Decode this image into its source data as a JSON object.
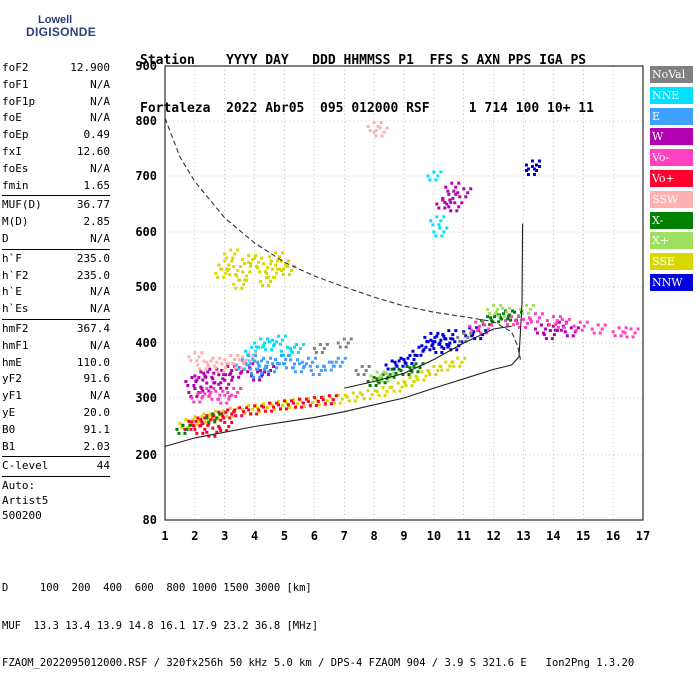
{
  "logo": {
    "line1": "Lowell",
    "line2": "DIGISONDE"
  },
  "header": {
    "row1": "Station    YYYY DAY   DDD HHMMSS P1  FFS S AXN PPS IGA PS",
    "row2": "Fortaleza  2022 Abr05  095 012000 RSF     1 714 100 10+ 11"
  },
  "params": {
    "group1": [
      {
        "k": "foF2",
        "v": "12.900"
      },
      {
        "k": "foF1",
        "v": "N/A"
      },
      {
        "k": "foF1p",
        "v": "N/A"
      },
      {
        "k": "foE",
        "v": "N/A"
      },
      {
        "k": "foEp",
        "v": "0.49"
      },
      {
        "k": "fxI",
        "v": "12.60"
      },
      {
        "k": "foEs",
        "v": "N/A"
      },
      {
        "k": "fmin",
        "v": "1.65"
      }
    ],
    "group2": [
      {
        "k": "MUF(D)",
        "v": "36.77"
      },
      {
        "k": "M(D)",
        "v": "2.85"
      },
      {
        "k": "D",
        "v": "N/A"
      }
    ],
    "group3": [
      {
        "k": "h`F",
        "v": "235.0"
      },
      {
        "k": "h`F2",
        "v": "235.0"
      },
      {
        "k": "h`E",
        "v": "N/A"
      },
      {
        "k": "h`Es",
        "v": "N/A"
      }
    ],
    "group4": [
      {
        "k": "hmF2",
        "v": "367.4"
      },
      {
        "k": "hmF1",
        "v": "N/A"
      },
      {
        "k": "hmE",
        "v": "110.0"
      },
      {
        "k": "yF2",
        "v": "91.6"
      },
      {
        "k": "yF1",
        "v": "N/A"
      },
      {
        "k": "yE",
        "v": "20.0"
      },
      {
        "k": "B0",
        "v": "91.1"
      },
      {
        "k": "B1",
        "v": "2.03"
      }
    ],
    "group5": [
      {
        "k": "C-level",
        "v": "44"
      }
    ],
    "auto": [
      "Auto:",
      "Artist5",
      "500200"
    ]
  },
  "legend": [
    {
      "label": "NoVal",
      "color": "#808080",
      "text": "#ffffff"
    },
    {
      "label": "NNE",
      "color": "#00e0ff",
      "text": "#ffffff"
    },
    {
      "label": "E",
      "color": "#40a0ff",
      "text": "#ffffff"
    },
    {
      "label": "W",
      "color": "#b000b0",
      "text": "#ffffff"
    },
    {
      "label": "Vo-",
      "color": "#ff40c0",
      "text": "#ffffff"
    },
    {
      "label": "Vo+",
      "color": "#ff0030",
      "text": "#ffffff"
    },
    {
      "label": "SSW",
      "color": "#ffb0b0",
      "text": "#ffffff"
    },
    {
      "label": "X-",
      "color": "#008000",
      "text": "#ffffff"
    },
    {
      "label": "X+",
      "color": "#a0e060",
      "text": "#ffffff"
    },
    {
      "label": "SSE",
      "color": "#d8d800",
      "text": "#ffffff"
    },
    {
      "label": "NNW",
      "color": "#0000e0",
      "text": "#ffffff"
    }
  ],
  "chart_data": {
    "type": "scatter",
    "xlim": [
      1,
      17
    ],
    "ylim": [
      80,
      900
    ],
    "x_ticks": [
      "1",
      "2",
      "3",
      "4",
      "5",
      "6",
      "7",
      "8",
      "9",
      "10",
      "11",
      "12",
      "13",
      "14",
      "15",
      "16",
      "17"
    ],
    "y_ticks": [
      {
        "v": 200,
        "label": "200"
      },
      {
        "v": 300,
        "label": "300"
      },
      {
        "v": 400,
        "label": "400"
      },
      {
        "v": 500,
        "label": "500"
      },
      {
        "v": 600,
        "label": "600"
      },
      {
        "v": 700,
        "label": "700"
      },
      {
        "v": 800,
        "label": "800"
      },
      {
        "v": 900,
        "label": "900"
      }
    ],
    "y_bottom_label": "80",
    "grid": "dotted",
    "clusters": [
      {
        "name": "SSE",
        "color": "#d8d800",
        "points": [
          [
            1.7,
            255
          ],
          [
            2.0,
            260
          ],
          [
            2.3,
            265
          ],
          [
            2.7,
            270
          ],
          [
            3.2,
            275
          ],
          [
            3.8,
            280
          ],
          [
            4.3,
            283
          ],
          [
            4.8,
            287
          ],
          [
            5.3,
            290
          ],
          [
            5.8,
            292
          ],
          [
            6.3,
            295
          ],
          [
            6.8,
            298
          ],
          [
            7.3,
            302
          ],
          [
            7.8,
            306
          ],
          [
            8.3,
            312
          ],
          [
            8.8,
            320
          ],
          [
            9.2,
            330
          ],
          [
            9.6,
            340
          ],
          [
            10.0,
            350
          ],
          [
            10.4,
            358
          ],
          [
            10.8,
            365
          ],
          [
            3.0,
            540
          ],
          [
            3.3,
            530
          ],
          [
            3.6,
            520
          ],
          [
            3.8,
            550
          ],
          [
            4.0,
            545
          ],
          [
            4.3,
            535
          ],
          [
            4.6,
            525
          ],
          [
            4.9,
            540
          ],
          [
            3.2,
            560
          ],
          [
            2.9,
            525
          ],
          [
            4.4,
            510
          ],
          [
            4.7,
            555
          ],
          [
            5.1,
            530
          ],
          [
            3.5,
            505
          ]
        ]
      },
      {
        "name": "Vo+",
        "color": "#ff0030",
        "points": [
          [
            1.8,
            252
          ],
          [
            2.1,
            258
          ],
          [
            2.4,
            262
          ],
          [
            2.8,
            268
          ],
          [
            3.1,
            272
          ],
          [
            3.5,
            276
          ],
          [
            4.0,
            279
          ],
          [
            4.5,
            284
          ],
          [
            5.0,
            288
          ],
          [
            5.5,
            291
          ],
          [
            6.0,
            294
          ],
          [
            6.5,
            297
          ],
          [
            2.2,
            245
          ],
          [
            2.6,
            240
          ],
          [
            3.0,
            250
          ]
        ]
      },
      {
        "name": "W",
        "color": "#b000b0",
        "points": [
          [
            1.9,
            330
          ],
          [
            2.2,
            340
          ],
          [
            2.5,
            345
          ],
          [
            2.8,
            335
          ],
          [
            3.1,
            350
          ],
          [
            3.4,
            345
          ],
          [
            3.7,
            355
          ],
          [
            4.1,
            340
          ],
          [
            4.4,
            350
          ],
          [
            2.4,
            320
          ],
          [
            3.0,
            325
          ],
          [
            2.0,
            310
          ],
          [
            10.3,
            650
          ],
          [
            10.5,
            660
          ],
          [
            10.7,
            645
          ],
          [
            11.0,
            670
          ],
          [
            10.6,
            680
          ],
          [
            13.6,
            425
          ],
          [
            13.9,
            415
          ],
          [
            14.2,
            430
          ],
          [
            14.6,
            420
          ]
        ]
      },
      {
        "name": "NNE",
        "color": "#00e0ff",
        "points": [
          [
            4.2,
            400
          ],
          [
            4.5,
            395
          ],
          [
            4.8,
            405
          ],
          [
            5.1,
            385
          ],
          [
            5.4,
            390
          ],
          [
            3.9,
            385
          ],
          [
            10.0,
            700
          ],
          [
            10.1,
            620
          ],
          [
            10.2,
            600
          ],
          [
            3.6,
            360
          ]
        ]
      },
      {
        "name": "E",
        "color": "#40a0ff",
        "points": [
          [
            4.0,
            360
          ],
          [
            4.3,
            365
          ],
          [
            4.6,
            355
          ],
          [
            4.9,
            370
          ],
          [
            5.2,
            362
          ],
          [
            5.5,
            355
          ],
          [
            5.8,
            365
          ],
          [
            6.1,
            350
          ],
          [
            3.8,
            370
          ],
          [
            4.1,
            345
          ],
          [
            6.5,
            358
          ],
          [
            6.8,
            365
          ]
        ]
      },
      {
        "name": "NNW",
        "color": "#0000e0",
        "points": [
          [
            8.6,
            360
          ],
          [
            8.9,
            365
          ],
          [
            9.2,
            370
          ],
          [
            9.5,
            385
          ],
          [
            9.8,
            395
          ],
          [
            10.1,
            405
          ],
          [
            10.4,
            400
          ],
          [
            10.7,
            395
          ],
          [
            9.9,
            410
          ],
          [
            10.2,
            390
          ],
          [
            10.5,
            415
          ],
          [
            13.3,
            720
          ],
          [
            13.3,
            710
          ],
          [
            11.2,
            420
          ],
          [
            11.5,
            415
          ]
        ]
      },
      {
        "name": "SSW",
        "color": "#ffb0b0",
        "points": [
          [
            2.3,
            360
          ],
          [
            2.6,
            365
          ],
          [
            2.9,
            355
          ],
          [
            3.2,
            370
          ],
          [
            3.5,
            362
          ],
          [
            2.0,
            375
          ],
          [
            3.8,
            375
          ],
          [
            8.0,
            790
          ],
          [
            8.2,
            780
          ]
        ]
      },
      {
        "name": "X-",
        "color": "#008000",
        "points": [
          [
            8.0,
            330
          ],
          [
            8.3,
            335
          ],
          [
            8.6,
            345
          ],
          [
            9.1,
            350
          ],
          [
            9.4,
            355
          ],
          [
            11.8,
            440
          ],
          [
            12.1,
            445
          ],
          [
            12.4,
            450
          ],
          [
            12.7,
            448
          ],
          [
            1.6,
            245
          ],
          [
            2.6,
            265
          ]
        ]
      },
      {
        "name": "X+",
        "color": "#a0e060",
        "points": [
          [
            8.1,
            340
          ],
          [
            8.4,
            338
          ],
          [
            12.0,
            460
          ],
          [
            12.3,
            455
          ],
          [
            13.1,
            460
          ]
        ]
      },
      {
        "name": "Vo-",
        "color": "#ff40c0",
        "points": [
          [
            2.1,
            300
          ],
          [
            2.4,
            310
          ],
          [
            2.7,
            305
          ],
          [
            3.0,
            298
          ],
          [
            3.3,
            310
          ],
          [
            11.4,
            430
          ],
          [
            11.7,
            425
          ],
          [
            12.6,
            440
          ],
          [
            13.0,
            435
          ],
          [
            13.4,
            445
          ],
          [
            14.0,
            440
          ],
          [
            14.3,
            435
          ],
          [
            14.9,
            430
          ],
          [
            15.5,
            425
          ],
          [
            16.2,
            420
          ],
          [
            16.6,
            418
          ]
        ]
      },
      {
        "name": "NoVal",
        "color": "#808080",
        "points": [
          [
            6.2,
            390
          ],
          [
            7.0,
            400
          ],
          [
            7.6,
            350
          ],
          [
            11.0,
            410
          ]
        ]
      }
    ],
    "lines": [
      {
        "style": "solid",
        "points": [
          [
            1,
            215
          ],
          [
            2,
            230
          ],
          [
            3,
            240
          ],
          [
            4,
            250
          ],
          [
            5,
            258
          ],
          [
            6,
            266
          ],
          [
            7,
            276
          ],
          [
            8,
            288
          ],
          [
            9,
            300
          ],
          [
            10,
            318
          ],
          [
            11,
            335
          ],
          [
            12,
            352
          ],
          [
            12.6,
            360
          ],
          [
            12.85,
            375
          ],
          [
            12.95,
            470
          ],
          [
            12.97,
            615
          ]
        ]
      },
      {
        "style": "solid",
        "points": [
          [
            7,
            318
          ],
          [
            8,
            330
          ],
          [
            9,
            345
          ],
          [
            10,
            370
          ],
          [
            11,
            400
          ],
          [
            12,
            425
          ],
          [
            12.6,
            430
          ]
        ]
      },
      {
        "style": "dashed",
        "points": [
          [
            1,
            805
          ],
          [
            1.5,
            735
          ],
          [
            2,
            690
          ],
          [
            3,
            625
          ],
          [
            4,
            580
          ],
          [
            5,
            545
          ],
          [
            6,
            520
          ],
          [
            7,
            500
          ],
          [
            8,
            482
          ],
          [
            9,
            466
          ],
          [
            10,
            455
          ],
          [
            11,
            447
          ],
          [
            12,
            438
          ],
          [
            12.6,
            420
          ],
          [
            12.8,
            395
          ],
          [
            12.9,
            370
          ]
        ]
      }
    ]
  },
  "bottom": {
    "line1": "D     100  200  400  600  800 1000 1500 3000 [km]",
    "line2": "MUF  13.3 13.4 13.9 14.8 16.1 17.9 23.2 36.8 [MHz]",
    "line3": "FZAOM_2022095012000.RSF / 320fx256h 50 kHz 5.0 km / DPS-4 FZAOM 904 / 3.9 S 321.6 E   Ion2Png 1.3.20"
  }
}
